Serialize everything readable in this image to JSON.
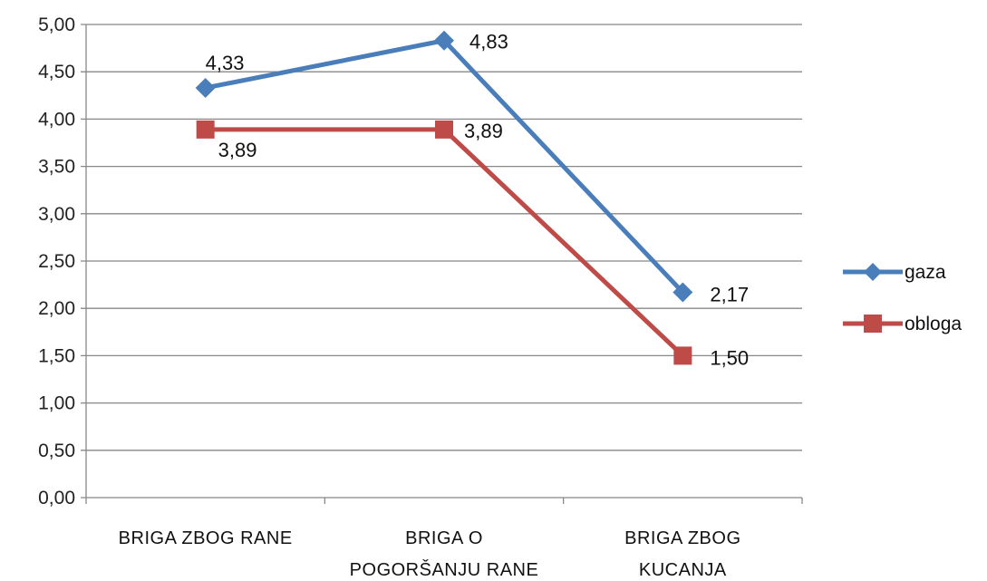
{
  "chart_data": {
    "type": "line",
    "title": "",
    "xlabel": "",
    "ylabel": "",
    "categories": [
      [
        "BRIGA ZBOG RANE"
      ],
      [
        "BRIGA O",
        "POGORŠANJU RANE"
      ],
      [
        "BRIGA ZBOG",
        "KUCANJA"
      ]
    ],
    "ylim": [
      0,
      5
    ],
    "ytick_step": 0.5,
    "ytick_labels": [
      "0,00",
      "0,50",
      "1,00",
      "1,50",
      "2,00",
      "2,50",
      "3,00",
      "3,50",
      "4,00",
      "4,50",
      "5,00"
    ],
    "grid": true,
    "legend_position": "right",
    "series": [
      {
        "name": "gaza",
        "values": [
          4.33,
          4.83,
          2.17
        ],
        "labels": [
          "4,33",
          "4,83",
          "2,17"
        ],
        "color": "#4a7ebb",
        "marker": "diamond"
      },
      {
        "name": "obloga",
        "values": [
          3.89,
          3.89,
          1.5
        ],
        "labels": [
          "3,89",
          "3,89",
          "1,50"
        ],
        "color": "#be4b48",
        "marker": "square"
      }
    ]
  }
}
